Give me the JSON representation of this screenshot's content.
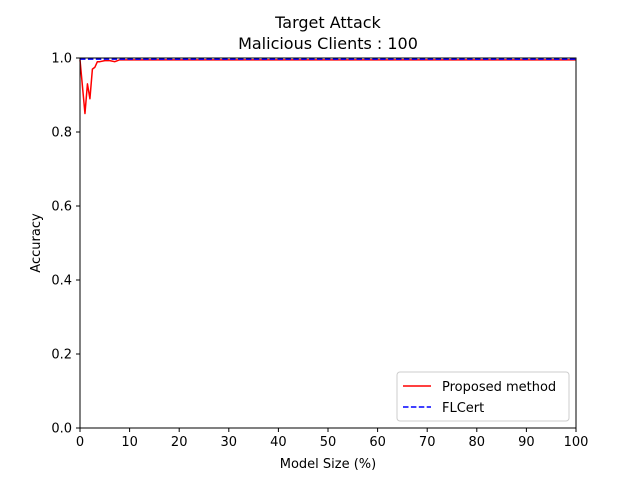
{
  "chart_data": {
    "type": "line",
    "title": "Target Attack",
    "subtitle": "Malicious Clients : 100",
    "xlabel": "Model Size (%)",
    "ylabel": "Accuracy",
    "xlim": [
      0,
      100
    ],
    "ylim": [
      0.0,
      1.0
    ],
    "xticks": [
      0,
      10,
      20,
      30,
      40,
      50,
      60,
      70,
      80,
      90,
      100
    ],
    "xtick_labels": [
      "0",
      "10",
      "20",
      "30",
      "40",
      "50",
      "60",
      "70",
      "80",
      "90",
      "100"
    ],
    "yticks": [
      0.0,
      0.2,
      0.4,
      0.6,
      0.8,
      1.0
    ],
    "ytick_labels": [
      "0.0",
      "0.2",
      "0.4",
      "0.6",
      "0.8",
      "1.0"
    ],
    "grid": false,
    "legend_position": "lower-right",
    "series": [
      {
        "name": "Proposed method",
        "color": "#ff0000",
        "style": "solid",
        "x": [
          0,
          1,
          1.5,
          2,
          2.5,
          3,
          3.5,
          4,
          5,
          6,
          7,
          8,
          9,
          10,
          15,
          20,
          30,
          40,
          50,
          60,
          70,
          80,
          90,
          100
        ],
        "y": [
          0.995,
          0.85,
          0.93,
          0.89,
          0.97,
          0.975,
          0.99,
          0.99,
          0.993,
          0.993,
          0.99,
          0.995,
          0.995,
          0.995,
          0.995,
          0.995,
          0.995,
          0.995,
          0.995,
          0.995,
          0.995,
          0.995,
          0.995,
          0.995
        ]
      },
      {
        "name": "FLCert",
        "color": "#0000ff",
        "style": "dashed",
        "x": [
          0,
          100
        ],
        "y": [
          0.997,
          0.997
        ]
      }
    ]
  }
}
